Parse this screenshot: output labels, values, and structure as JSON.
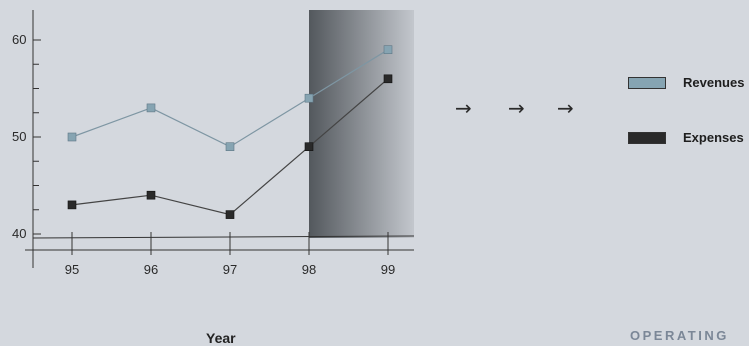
{
  "chart_data": {
    "type": "line",
    "x": [
      "95",
      "96",
      "97",
      "98",
      "99"
    ],
    "series": [
      {
        "name": "Revenues",
        "values": [
          50,
          53,
          49,
          54,
          59
        ],
        "color": "#86a4b2"
      },
      {
        "name": "Expenses",
        "values": [
          43,
          44,
          42,
          49,
          56
        ],
        "color": "#2a2a2a"
      }
    ],
    "y_ticks": [
      "40",
      "50",
      "60"
    ],
    "ylim": [
      40,
      61
    ],
    "xlabel": "Year",
    "ylabel": "",
    "title": "",
    "highlight_region": {
      "from": "98",
      "to": "99"
    },
    "legend_placement": "right",
    "grid": false
  },
  "arrows": [
    "→",
    "→",
    "→"
  ],
  "footer_text": "OPERATING"
}
